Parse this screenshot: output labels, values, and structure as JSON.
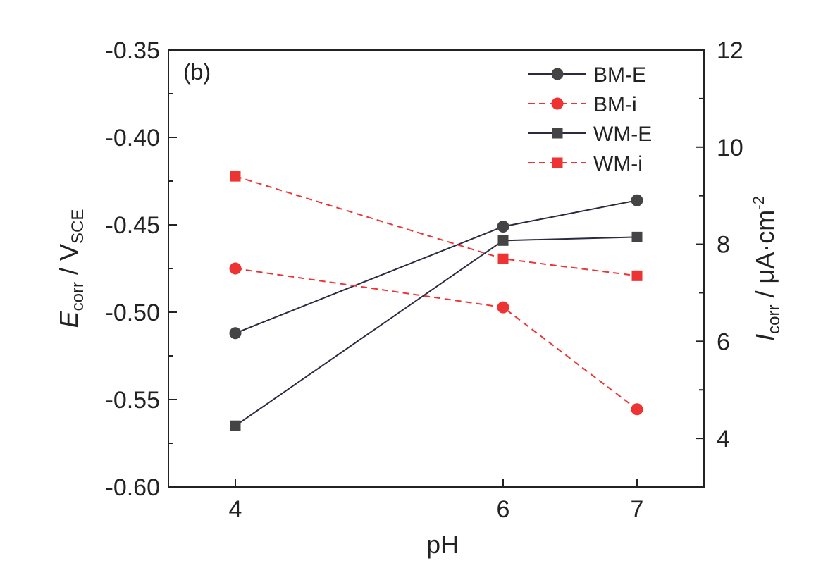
{
  "chart_data": {
    "type": "line",
    "panel_label": "(b)",
    "x": [
      4,
      6,
      7
    ],
    "xlabel": "pH",
    "x_tick_labels": [
      "4",
      "6",
      "7"
    ],
    "xlim": [
      3.5,
      7.5
    ],
    "ylabel_left": {
      "main": "E",
      "sub": "corr",
      "rest": " / V",
      "rest_sub": "SCE"
    },
    "ylim_left": [
      -0.6,
      -0.35
    ],
    "y_left_ticks": [
      -0.6,
      -0.55,
      -0.5,
      -0.45,
      -0.4,
      -0.35
    ],
    "y_left_tick_labels": [
      "-0.60",
      "-0.55",
      "-0.50",
      "-0.45",
      "-0.40",
      "-0.35"
    ],
    "ylabel_right": {
      "main": "I",
      "sub": "corr",
      "rest": " / μA·cm",
      "rest_sup": "-2"
    },
    "ylim_right": [
      3,
      12
    ],
    "y_right_ticks": [
      4,
      6,
      8,
      10,
      12
    ],
    "y_right_tick_labels": [
      "4",
      "6",
      "8",
      "10",
      "12"
    ],
    "legend_position": "top-right",
    "series": [
      {
        "name": "BM-E",
        "axis": "left",
        "marker": "circle",
        "dash": "solid",
        "color": "#444444",
        "line_color": "#2a2a40",
        "values": [
          -0.512,
          -0.451,
          -0.436
        ]
      },
      {
        "name": "BM-i",
        "axis": "right",
        "marker": "circle",
        "dash": "dashed",
        "color": "#ee3333",
        "line_color": "#ee3333",
        "values": [
          7.5,
          6.7,
          4.6
        ]
      },
      {
        "name": "WM-E",
        "axis": "left",
        "marker": "square",
        "dash": "solid",
        "color": "#444444",
        "line_color": "#2a2a40",
        "values": [
          -0.565,
          -0.459,
          -0.457
        ]
      },
      {
        "name": "WM-i",
        "axis": "right",
        "marker": "square",
        "dash": "dashed",
        "color": "#ee3333",
        "line_color": "#ee3333",
        "values": [
          9.4,
          7.7,
          7.35
        ]
      }
    ]
  }
}
